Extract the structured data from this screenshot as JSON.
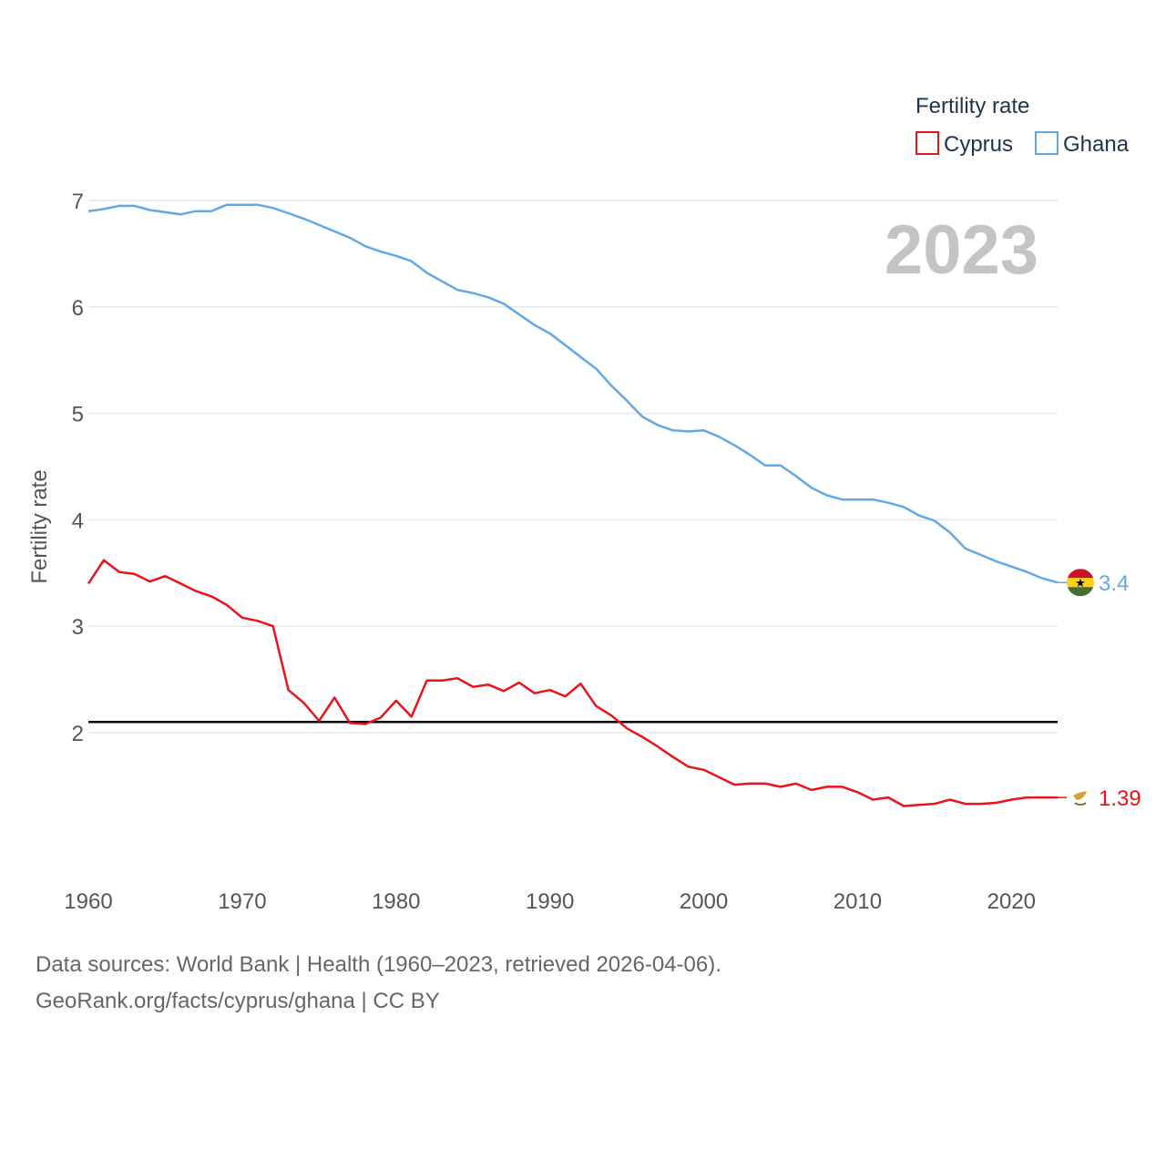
{
  "chart_data": {
    "type": "line",
    "ylabel": "Fertility rate",
    "xlabel": "",
    "xlim": [
      1960,
      2023
    ],
    "ylim": [
      0.92,
      7.3
    ],
    "y_ticks": [
      2,
      3,
      4,
      5,
      6,
      7
    ],
    "x_ticks": [
      1960,
      1970,
      1980,
      1990,
      2000,
      2010,
      2020
    ],
    "legend": {
      "title": "Fertility rate",
      "position": "top-right"
    },
    "current_year": "2023",
    "reference_line": {
      "value": 2.1
    },
    "series": [
      {
        "name": "Cyprus",
        "color": "#e8141a",
        "end_label": "1.39",
        "flag": "cyprus",
        "x": [
          1960,
          1961,
          1962,
          1963,
          1964,
          1965,
          1966,
          1967,
          1968,
          1969,
          1970,
          1971,
          1972,
          1973,
          1974,
          1975,
          1976,
          1977,
          1978,
          1979,
          1980,
          1981,
          1982,
          1983,
          1984,
          1985,
          1986,
          1987,
          1988,
          1989,
          1990,
          1991,
          1992,
          1993,
          1994,
          1995,
          1996,
          1997,
          1998,
          1999,
          2000,
          2001,
          2002,
          2003,
          2004,
          2005,
          2006,
          2007,
          2008,
          2009,
          2010,
          2011,
          2012,
          2013,
          2014,
          2015,
          2016,
          2017,
          2018,
          2019,
          2020,
          2021,
          2022,
          2023
        ],
        "values": [
          3.4,
          3.62,
          3.51,
          3.49,
          3.42,
          3.47,
          3.4,
          3.33,
          3.28,
          3.2,
          3.08,
          3.05,
          3.0,
          2.4,
          2.28,
          2.11,
          2.33,
          2.09,
          2.08,
          2.14,
          2.3,
          2.15,
          2.49,
          2.49,
          2.51,
          2.43,
          2.45,
          2.39,
          2.47,
          2.37,
          2.4,
          2.34,
          2.46,
          2.25,
          2.16,
          2.04,
          1.96,
          1.87,
          1.77,
          1.68,
          1.65,
          1.58,
          1.51,
          1.52,
          1.52,
          1.49,
          1.52,
          1.46,
          1.49,
          1.49,
          1.44,
          1.37,
          1.39,
          1.31,
          1.32,
          1.33,
          1.37,
          1.33,
          1.33,
          1.34,
          1.37,
          1.39,
          1.39,
          1.39
        ]
      },
      {
        "name": "Ghana",
        "color": "#62a8e5",
        "end_label": "3.4",
        "flag": "ghana",
        "x": [
          1960,
          1961,
          1962,
          1963,
          1964,
          1965,
          1966,
          1967,
          1968,
          1969,
          1970,
          1971,
          1972,
          1973,
          1974,
          1975,
          1976,
          1977,
          1978,
          1979,
          1980,
          1981,
          1982,
          1983,
          1984,
          1985,
          1986,
          1987,
          1988,
          1989,
          1990,
          1991,
          1992,
          1993,
          1994,
          1995,
          1996,
          1997,
          1998,
          1999,
          2000,
          2001,
          2002,
          2003,
          2004,
          2005,
          2006,
          2007,
          2008,
          2009,
          2010,
          2011,
          2012,
          2013,
          2014,
          2015,
          2016,
          2017,
          2018,
          2019,
          2020,
          2021,
          2022,
          2023
        ],
        "values": [
          6.9,
          6.92,
          6.95,
          6.95,
          6.91,
          6.89,
          6.87,
          6.9,
          6.9,
          6.96,
          6.96,
          6.96,
          6.93,
          6.88,
          6.83,
          6.77,
          6.71,
          6.65,
          6.57,
          6.52,
          6.48,
          6.43,
          6.32,
          6.24,
          6.16,
          6.13,
          6.09,
          6.03,
          5.93,
          5.83,
          5.75,
          5.64,
          5.53,
          5.42,
          5.26,
          5.12,
          4.97,
          4.89,
          4.84,
          4.83,
          4.84,
          4.78,
          4.7,
          4.61,
          4.51,
          4.51,
          4.41,
          4.3,
          4.23,
          4.19,
          4.19,
          4.19,
          4.16,
          4.12,
          4.04,
          3.99,
          3.88,
          3.73,
          3.67,
          3.61,
          3.56,
          3.51,
          3.45,
          3.41
        ]
      }
    ]
  },
  "footer": {
    "line1": "Data sources: World Bank | Health (1960–2023, retrieved 2026-04-06).",
    "line2": "GeoRank.org/facts/cyprus/ghana | CC BY"
  }
}
